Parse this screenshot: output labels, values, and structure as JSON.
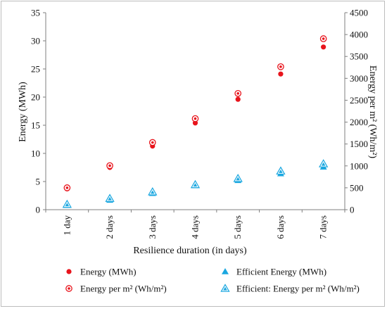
{
  "chart_data": {
    "type": "scatter",
    "categories": [
      "1 day",
      "2 days",
      "3 days",
      "4 days",
      "5 days",
      "6 days",
      "7 days"
    ],
    "xlabel": "Resilience duration (in days)",
    "ylabel": "Energy (MWh)",
    "y2label": "Energy per m² (Wh/m²)",
    "ylim": [
      0,
      35
    ],
    "y2lim": [
      0,
      4500
    ],
    "yticks": [
      "0",
      "5",
      "10",
      "15",
      "20",
      "25",
      "30",
      "35"
    ],
    "y2ticks": [
      "0",
      "500",
      "1000",
      "1500",
      "2000",
      "2500",
      "3000",
      "3500",
      "4000",
      "4500"
    ],
    "grid": false,
    "legend_position": "bottom",
    "series": [
      {
        "name": "Energy (MWh)",
        "axis": "left",
        "marker": "filled-circle",
        "color": "#e8141c",
        "values": [
          3.7,
          7.5,
          11.3,
          15.4,
          19.6,
          24.1,
          28.9
        ]
      },
      {
        "name": "Efficient Energy (MWh)",
        "axis": "left",
        "marker": "filled-triangle",
        "color": "#1aa7e0",
        "values": [
          0.8,
          1.7,
          2.9,
          4.3,
          5.2,
          6.4,
          7.6
        ]
      },
      {
        "name": "Energy per m² (Wh/m²)",
        "axis": "right",
        "marker": "open-circle",
        "color": "#e8141c",
        "values": [
          500,
          1005,
          1535,
          2080,
          2655,
          3265,
          3905
        ]
      },
      {
        "name": "Efficient: Energy per m² (Wh/m²)",
        "axis": "right",
        "marker": "open-triangle",
        "color": "#1aa7e0",
        "values": [
          120,
          255,
          405,
          570,
          710,
          880,
          1045
        ]
      }
    ]
  }
}
